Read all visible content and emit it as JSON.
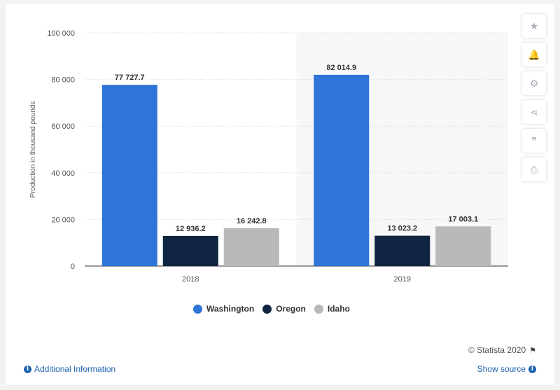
{
  "sidebar": {
    "buttons": [
      {
        "icon": "star-icon",
        "glyph": "★"
      },
      {
        "icon": "bell-icon",
        "glyph": "🔔"
      },
      {
        "icon": "gear-icon",
        "glyph": "⚙"
      },
      {
        "icon": "share-icon",
        "glyph": "⋖"
      },
      {
        "icon": "quote-icon",
        "glyph": "❞"
      },
      {
        "icon": "print-icon",
        "glyph": "⎙"
      }
    ]
  },
  "footer": {
    "credits": "© Statista 2020",
    "additional_info": "Additional Information",
    "show_source": "Show source",
    "info_glyph": "i"
  },
  "colors": {
    "Washington": "#2f74d8",
    "Oregon": "#0f2541",
    "Idaho": "#b9b9b9",
    "highlight_band": "#f7f7f9",
    "grid": "#d6d6d6"
  },
  "chart_data": {
    "type": "bar",
    "categories": [
      "2018",
      "2019"
    ],
    "series": [
      {
        "name": "Washington",
        "values": [
          77727.7,
          82014.9
        ],
        "labels": [
          "77 727.7",
          "82 014.9"
        ]
      },
      {
        "name": "Oregon",
        "values": [
          12936.2,
          13023.2
        ],
        "labels": [
          "12 936.2",
          "13 023.2"
        ]
      },
      {
        "name": "Idaho",
        "values": [
          16242.8,
          17003.1
        ],
        "labels": [
          "16 242.8",
          "17 003.1"
        ]
      }
    ],
    "ylabel": "Production in thousand pounds",
    "ylim": [
      0,
      100000
    ],
    "yticks": [
      0,
      20000,
      40000,
      60000,
      80000,
      100000
    ],
    "ytick_labels": [
      "0",
      "20 000",
      "40 000",
      "60 000",
      "80 000",
      "100 000"
    ],
    "grid": true,
    "legend": "bottom",
    "highlighted_category": "2019"
  }
}
